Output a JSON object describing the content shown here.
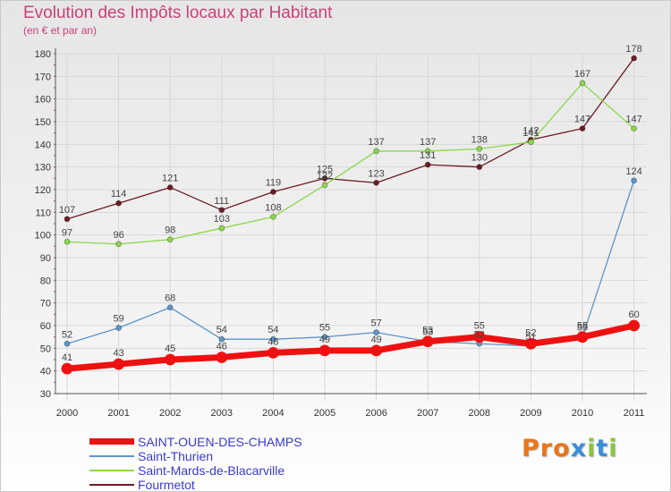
{
  "title": "Evolution des Impôts locaux par Habitant",
  "subtitle": "(en € et par an)",
  "logo": {
    "text": "Proxiti",
    "letter_colors": [
      "#e8761a",
      "#e8761a",
      "#e8761a",
      "#3a8fd8",
      "#8ac53e",
      "#3a8fd8",
      "#8ac53e"
    ]
  },
  "chart_data": {
    "type": "line",
    "title": "Evolution des Impôts locaux par Habitant",
    "subtitle": "(en € et par an)",
    "xlabel": "",
    "ylabel": "",
    "ylim": [
      30,
      180
    ],
    "yticks": [
      "30",
      "40",
      "50",
      "60",
      "70",
      "80",
      "90",
      "100",
      "110",
      "120",
      "130",
      "140",
      "150",
      "160",
      "170",
      "180"
    ],
    "grid": true,
    "legend_position": "bottom-left",
    "categories": [
      "2000",
      "2001",
      "2002",
      "2003",
      "2004",
      "2005",
      "2006",
      "2007",
      "2008",
      "2009",
      "2010",
      "2011"
    ],
    "series": [
      {
        "name": "SAINT-OUEN-DES-CHAMPS",
        "color": "#ee1111",
        "bold": true,
        "values": [
          41,
          43,
          45,
          46,
          48,
          49,
          49,
          53,
          55,
          52,
          55,
          60
        ],
        "labels": [
          "41",
          "43",
          "45",
          "46",
          "48",
          "49",
          "49",
          "53",
          "55",
          "52",
          "55",
          "60"
        ]
      },
      {
        "name": "Saint-Thurien",
        "color": "#5d95c8",
        "bold": false,
        "values": [
          52,
          59,
          68,
          54,
          54,
          55,
          57,
          53,
          52,
          51,
          55,
          124
        ],
        "labels": [
          "52",
          "59",
          "68",
          "54",
          "54",
          "55",
          "57",
          "53",
          "52",
          "51",
          "55",
          "124"
        ]
      },
      {
        "name": "Saint-Mards-de-Blacarville",
        "color": "#8ad84a",
        "bold": false,
        "values": [
          97,
          96,
          98,
          103,
          108,
          122,
          137,
          137,
          138,
          141,
          167,
          147
        ],
        "labels": [
          "97",
          "96",
          "98",
          "103",
          "108",
          "122",
          "137",
          "137",
          "138",
          "141",
          "167",
          "147"
        ]
      },
      {
        "name": "Fourmetot",
        "color": "#6e1c24",
        "bold": false,
        "values": [
          107,
          114,
          121,
          111,
          119,
          125,
          123,
          131,
          130,
          142,
          147,
          178
        ],
        "labels": [
          "107",
          "114",
          "121",
          "111",
          "119",
          "125",
          "123",
          "131",
          "130",
          "142",
          "147",
          "178"
        ]
      }
    ]
  }
}
